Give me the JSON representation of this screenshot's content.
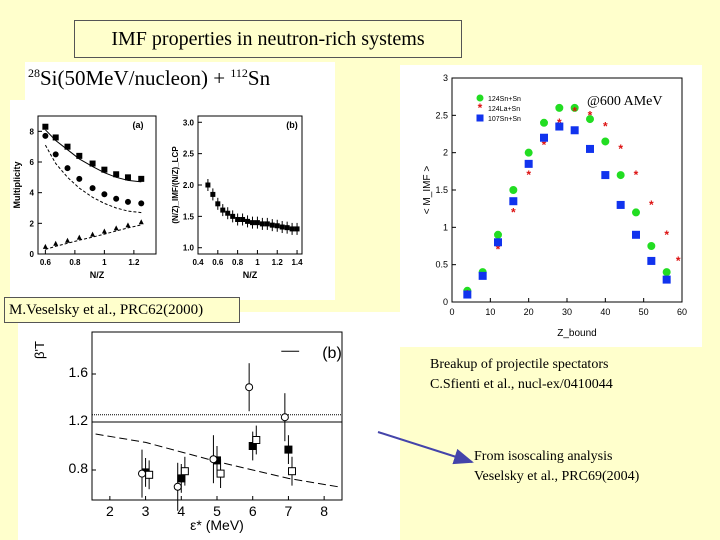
{
  "title": "IMF properties in neutron-rich systems",
  "formula": {
    "a1": "28",
    "el1": "Si",
    "mid": "(50MeV/nucleon) + ",
    "a2": "112",
    "el2": "Sn"
  },
  "reference_left": "M.Veselsky et al., PRC62(2000)",
  "energy_label": "@600 AMeV",
  "breakup_text": {
    "line1": "Breakup of projectile spectators",
    "line2": "C.Sfienti et al., nucl-ex/0410044"
  },
  "isoscaling_text": {
    "line1": "From isoscaling analysis",
    "line2": "Veselsky et al., PRC69(2004)"
  },
  "colors": {
    "background": "#ffffcc",
    "green": "#22dd22",
    "red": "#dd1111",
    "blue": "#1133ee",
    "arrow": "#4444aa"
  },
  "chart_data": [
    {
      "id": "panel-a",
      "type": "scatter",
      "label": "(a)",
      "xlabel": "N/Z_QP",
      "ylabel": "Multiplicity",
      "xlim": [
        0.55,
        1.35
      ],
      "ylim": [
        0,
        9
      ],
      "xticks": [
        "0.6",
        "0.8",
        "1",
        "1.2"
      ],
      "yticks": [
        "0",
        "2",
        "4",
        "6",
        "8"
      ],
      "series": [
        {
          "name": "squares",
          "x": [
            0.6,
            0.67,
            0.75,
            0.83,
            0.92,
            1.0,
            1.08,
            1.16,
            1.25
          ],
          "y": [
            8.3,
            7.6,
            7.0,
            6.4,
            5.9,
            5.5,
            5.2,
            5.0,
            4.9
          ]
        },
        {
          "name": "circles",
          "x": [
            0.6,
            0.67,
            0.75,
            0.83,
            0.92,
            1.0,
            1.08,
            1.16,
            1.25
          ],
          "y": [
            7.7,
            6.5,
            5.6,
            4.9,
            4.3,
            3.9,
            3.6,
            3.4,
            3.3
          ]
        },
        {
          "name": "triangles",
          "x": [
            0.6,
            0.67,
            0.75,
            0.83,
            0.92,
            1.0,
            1.08,
            1.16,
            1.25
          ],
          "y": [
            0.5,
            0.7,
            0.9,
            1.1,
            1.3,
            1.5,
            1.7,
            1.9,
            2.1
          ]
        }
      ]
    },
    {
      "id": "panel-b",
      "type": "scatter",
      "label": "(b)",
      "xlabel": "N/Z_QP",
      "ylabel": "(N/Z)_IMF/(N/Z)_LCP",
      "xlim": [
        0.4,
        1.45
      ],
      "ylim": [
        0.9,
        3.1
      ],
      "xticks": [
        "0.4",
        "0.6",
        "0.8",
        "1",
        "1.2",
        "1.4"
      ],
      "yticks": [
        "1.0",
        "1.5",
        "2.0",
        "2.5",
        "3.0"
      ],
      "series": [
        {
          "name": "ratio",
          "x": [
            0.5,
            0.55,
            0.6,
            0.65,
            0.7,
            0.75,
            0.8,
            0.85,
            0.9,
            0.95,
            1.0,
            1.05,
            1.1,
            1.15,
            1.2,
            1.25,
            1.3,
            1.35,
            1.4
          ],
          "y": [
            2.0,
            1.85,
            1.7,
            1.6,
            1.55,
            1.5,
            1.45,
            1.45,
            1.42,
            1.4,
            1.4,
            1.38,
            1.38,
            1.36,
            1.35,
            1.33,
            1.32,
            1.3,
            1.3
          ]
        }
      ]
    },
    {
      "id": "panel-zbound",
      "type": "scatter",
      "xlabel": "Z_bound",
      "ylabel": "< M_IMF >",
      "xlim": [
        0,
        60
      ],
      "ylim": [
        0,
        3
      ],
      "xticks": [
        "0",
        "10",
        "20",
        "30",
        "40",
        "50",
        "60"
      ],
      "yticks": [
        "0",
        "0.5",
        "1",
        "1.5",
        "2",
        "2.5",
        "3"
      ],
      "legend": [
        "124Sn+Sn",
        "124La+Sn",
        "107Sn+Sn"
      ],
      "series": [
        {
          "name": "124Sn+Sn",
          "x": [
            4,
            8,
            12,
            16,
            20,
            24,
            28,
            32,
            36,
            40,
            44,
            48,
            52,
            56
          ],
          "y": [
            0.15,
            0.4,
            0.9,
            1.5,
            2.0,
            2.4,
            2.6,
            2.6,
            2.45,
            2.15,
            1.7,
            1.2,
            0.75,
            0.4
          ]
        },
        {
          "name": "124La+Sn",
          "x": [
            4,
            8,
            12,
            16,
            20,
            24,
            28,
            32,
            36,
            40,
            44,
            48,
            52,
            56,
            59
          ],
          "y": [
            0.1,
            0.3,
            0.7,
            1.2,
            1.7,
            2.1,
            2.4,
            2.55,
            2.5,
            2.35,
            2.05,
            1.7,
            1.3,
            0.9,
            0.55
          ]
        },
        {
          "name": "107Sn+Sn",
          "x": [
            4,
            8,
            12,
            16,
            20,
            24,
            28,
            32,
            36,
            40,
            44,
            48,
            52,
            56
          ],
          "y": [
            0.1,
            0.35,
            0.8,
            1.35,
            1.85,
            2.2,
            2.35,
            2.3,
            2.05,
            1.7,
            1.3,
            0.9,
            0.55,
            0.3
          ]
        }
      ]
    },
    {
      "id": "panel-bottom",
      "type": "scatter",
      "label": "(b)",
      "xlabel": "ε* (MeV)",
      "ylabel": "β'T",
      "xlim": [
        1.5,
        8.5
      ],
      "ylim": [
        0.55,
        1.95
      ],
      "xticks": [
        "2",
        "3",
        "4",
        "5",
        "6",
        "7",
        "8"
      ],
      "yticks": [
        "0.8",
        "1.2",
        "1.6"
      ],
      "series": [
        {
          "name": "filled squares",
          "x": [
            3.0,
            4.0,
            5.0,
            6.0,
            7.0
          ],
          "y": [
            0.78,
            0.73,
            0.88,
            1.0,
            0.97
          ]
        },
        {
          "name": "open squares",
          "x": [
            3.1,
            4.1,
            5.1,
            6.1,
            7.1
          ],
          "y": [
            0.76,
            0.79,
            0.77,
            1.05,
            0.79
          ]
        },
        {
          "name": "open circles",
          "x": [
            2.9,
            3.9,
            4.9,
            5.9,
            6.9
          ],
          "y": [
            0.77,
            0.66,
            0.89,
            1.49,
            1.24
          ]
        }
      ]
    }
  ]
}
